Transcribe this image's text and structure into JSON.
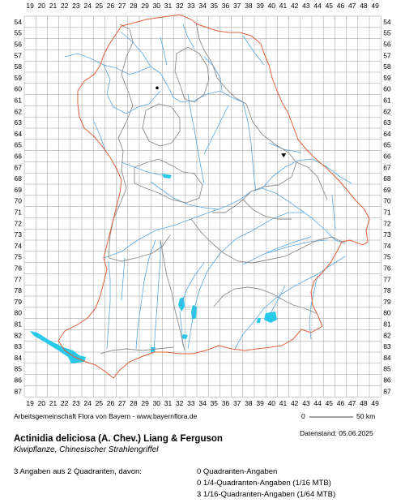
{
  "grid": {
    "columns": [
      "19",
      "20",
      "21",
      "22",
      "23",
      "24",
      "25",
      "26",
      "27",
      "28",
      "29",
      "30",
      "31",
      "32",
      "33",
      "34",
      "35",
      "36",
      "37",
      "38",
      "39",
      "40",
      "41",
      "42",
      "43",
      "44",
      "45",
      "46",
      "47",
      "48",
      "49"
    ],
    "rows": [
      "54",
      "55",
      "56",
      "57",
      "58",
      "59",
      "60",
      "61",
      "62",
      "63",
      "64",
      "65",
      "66",
      "67",
      "68",
      "69",
      "70",
      "71",
      "72",
      "73",
      "74",
      "75",
      "76",
      "77",
      "78",
      "79",
      "80",
      "81",
      "82",
      "83",
      "84",
      "85",
      "86",
      "87"
    ]
  },
  "colors": {
    "grid": "#9a9a9a",
    "state_border": "#e0603a",
    "district_border": "#8c8c8c",
    "rivers": "#5aa8e0",
    "lakes": "#28c8e8",
    "markers": "#000000"
  },
  "markers": [
    {
      "symbol": "dot-icon",
      "column": "30",
      "row": "60"
    },
    {
      "symbol": "triangle-down-icon",
      "column": "41",
      "row": "66"
    }
  ],
  "footer": {
    "credit": "Arbeitsgemeinschaft Flora von Bayern - www.bayernflora.de",
    "scale_start": "0",
    "scale_end": "50 km",
    "date": "Datenstand: 05.06.2025",
    "species": "Actinidia deliciosa (A. Chev.) Liang & Ferguson",
    "common_names": "Kiwipflanze, Chinesischer Strahlengriffel",
    "summary": "3 Angaben aus 2 Quadranten, davon:",
    "stats": [
      "0 Quadranten-Angaben",
      "0 1/4-Quadranten-Angaben (1/16 MTB)",
      "3 1/16-Quadranten-Angaben (1/64 MTB)"
    ]
  }
}
